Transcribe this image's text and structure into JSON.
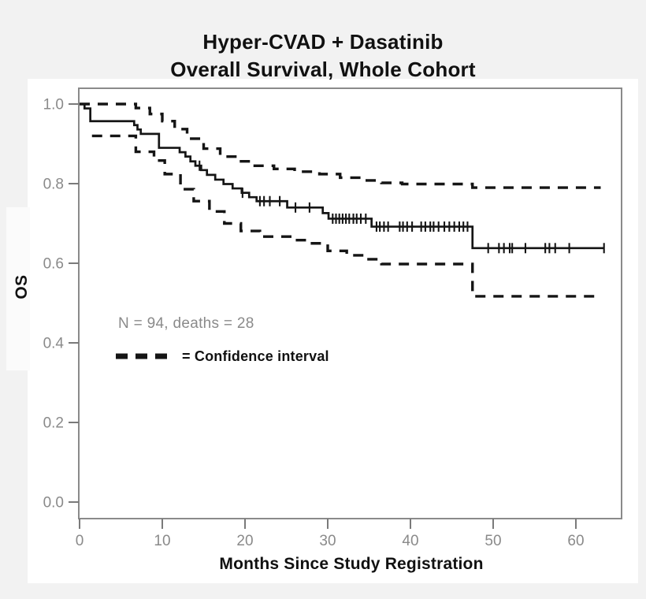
{
  "title": {
    "line1": "Hyper-CVAD + Dasatinib",
    "line2": "Overall Survival, Whole Cohort"
  },
  "annotation": "N = 94, deaths = 28",
  "legend": {
    "label": "= Confidence interval"
  },
  "colors": {
    "background": "#f2f2f2",
    "panel": "#ffffff",
    "curve": "#151515",
    "frame": "#8a8a8a",
    "tick": "#7a7a7a",
    "muted_text": "#8a8a8a",
    "title_text": "#111111"
  },
  "chart_data": {
    "type": "line",
    "subtype": "kaplan-meier-step",
    "title": "Hyper-CVAD + Dasatinib Overall Survival, Whole Cohort",
    "xlabel": "Months Since Study Registration",
    "ylabel": "OS",
    "xlim": [
      0,
      66
    ],
    "ylim": [
      0.0,
      1.0
    ],
    "x_ticks": [
      0,
      10,
      20,
      30,
      40,
      50,
      60
    ],
    "y_ticks": [
      1.0,
      0.8,
      0.6,
      0.4,
      0.2,
      0.0
    ],
    "n": 94,
    "deaths": 28,
    "grid": false,
    "legend_position": "inside-left",
    "series": [
      {
        "name": "OS estimate",
        "style": "solid",
        "end_month": 63.4,
        "steps": [
          [
            0,
            1.0
          ],
          [
            0.6,
            0.989
          ],
          [
            1.3,
            0.957
          ],
          [
            6.6,
            0.947
          ],
          [
            7.0,
            0.936
          ],
          [
            7.4,
            0.925
          ],
          [
            9.6,
            0.89
          ],
          [
            12.1,
            0.879
          ],
          [
            12.8,
            0.868
          ],
          [
            13.4,
            0.856
          ],
          [
            14.0,
            0.845
          ],
          [
            14.7,
            0.834
          ],
          [
            15.4,
            0.822
          ],
          [
            16.4,
            0.81
          ],
          [
            17.4,
            0.799
          ],
          [
            18.5,
            0.788
          ],
          [
            19.6,
            0.777
          ],
          [
            20.5,
            0.766
          ],
          [
            21.4,
            0.756
          ],
          [
            25.1,
            0.74
          ],
          [
            29.4,
            0.726
          ],
          [
            30.1,
            0.712
          ],
          [
            35.3,
            0.692
          ],
          [
            47.5,
            0.638
          ]
        ]
      },
      {
        "name": "Upper confidence interval",
        "style": "dashed",
        "end_month": 63.0,
        "steps": [
          [
            0,
            1.0
          ],
          [
            6.8,
            0.99
          ],
          [
            8.5,
            0.975
          ],
          [
            10.0,
            0.957
          ],
          [
            11.5,
            0.937
          ],
          [
            13.0,
            0.913
          ],
          [
            15.0,
            0.888
          ],
          [
            17.0,
            0.868
          ],
          [
            19.0,
            0.856
          ],
          [
            21.0,
            0.845
          ],
          [
            23.5,
            0.837
          ],
          [
            26.0,
            0.83
          ],
          [
            29.0,
            0.824
          ],
          [
            31.5,
            0.815
          ],
          [
            34.0,
            0.808
          ],
          [
            36.5,
            0.802
          ],
          [
            39.0,
            0.799
          ],
          [
            47.5,
            0.79
          ]
        ]
      },
      {
        "name": "Lower confidence interval",
        "style": "dashed",
        "end_month": 63.0,
        "steps": [
          [
            1.5,
            0.92
          ],
          [
            6.8,
            0.88
          ],
          [
            9.0,
            0.858
          ],
          [
            10.3,
            0.824
          ],
          [
            12.2,
            0.786
          ],
          [
            13.8,
            0.756
          ],
          [
            15.7,
            0.73
          ],
          [
            17.5,
            0.7
          ],
          [
            19.5,
            0.681
          ],
          [
            21.8,
            0.667
          ],
          [
            25.8,
            0.658
          ],
          [
            27.5,
            0.65
          ],
          [
            30.0,
            0.631
          ],
          [
            32.3,
            0.62
          ],
          [
            34.5,
            0.61
          ],
          [
            36.5,
            0.598
          ],
          [
            47.5,
            0.517
          ]
        ]
      }
    ],
    "censor_marks_months": [
      14.5,
      19.7,
      21.8,
      22.3,
      23.0,
      24.2,
      26.1,
      27.8,
      30.6,
      31.0,
      31.4,
      31.8,
      32.2,
      32.6,
      33.1,
      33.5,
      34.0,
      34.6,
      35.9,
      36.3,
      36.8,
      37.3,
      38.7,
      39.1,
      39.6,
      40.2,
      41.3,
      41.8,
      42.4,
      42.8,
      43.4,
      44.1,
      44.7,
      45.3,
      45.9,
      46.4,
      46.9,
      49.4,
      50.7,
      51.3,
      52.0,
      52.3,
      53.9,
      56.3,
      56.8,
      57.5,
      59.2,
      63.4
    ]
  }
}
